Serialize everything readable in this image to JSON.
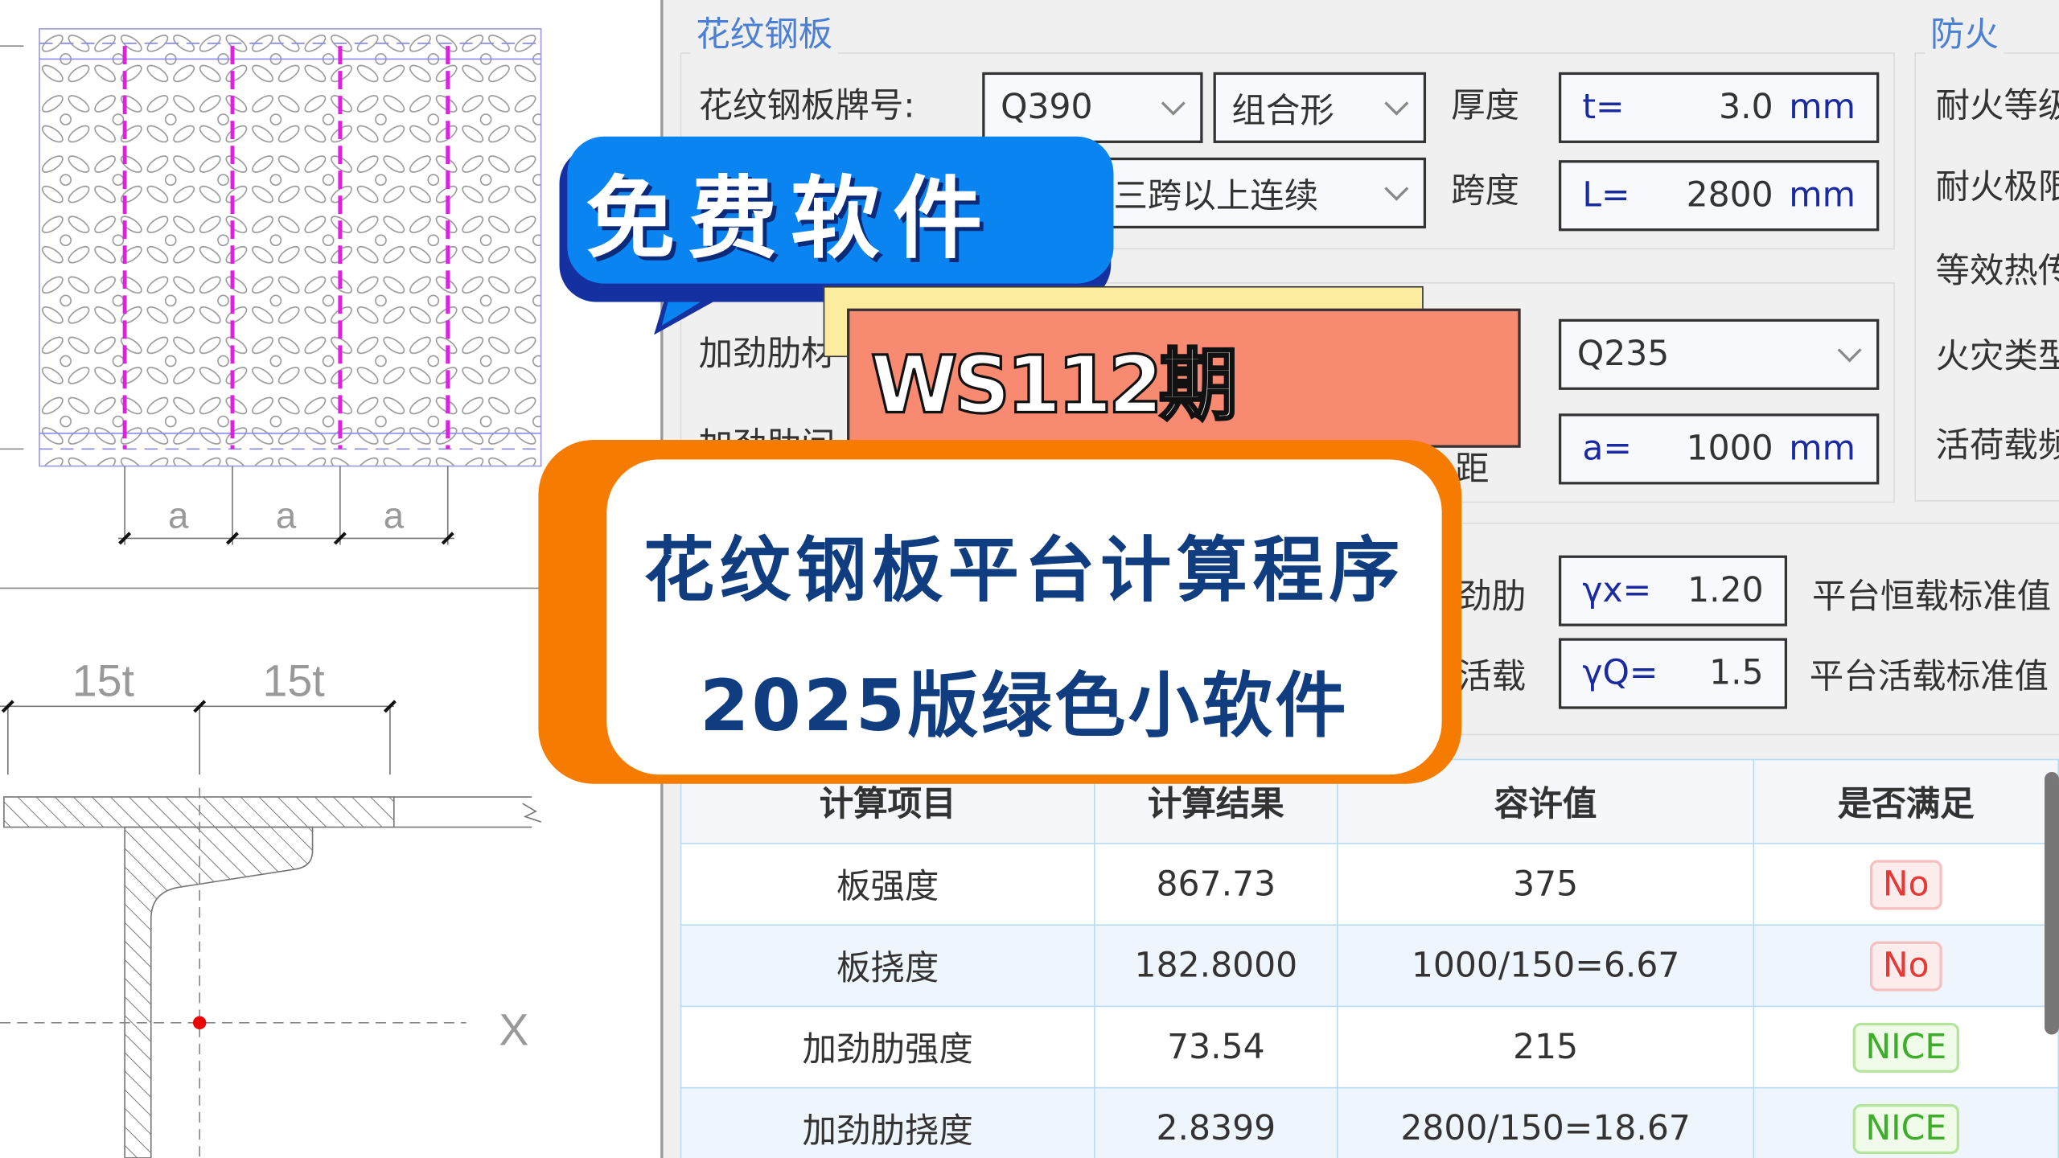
{
  "drawing": {
    "dim_a": "a",
    "dim_15t": "15t",
    "axis_x": "X"
  },
  "plate_group": {
    "title": "花纹钢板",
    "grade_label": "花纹钢板牌号:",
    "grade_value": "Q390",
    "shape_value": "组合形",
    "thickness_label": "厚度",
    "thickness_prefix": "t=",
    "thickness_value": "3.0",
    "thickness_unit": "mm",
    "span_type_value": "三跨以上连续",
    "span_label": "跨度",
    "span_prefix": "L=",
    "span_value": "2800",
    "span_unit": "mm"
  },
  "stiffener_group": {
    "material_label": "加劲肋材",
    "spacing_label_partial": "加劲肋间",
    "spacing_suffix": "距",
    "material_value": "Q235",
    "spacing_prefix": "a=",
    "spacing_value": "1000",
    "spacing_unit": "mm"
  },
  "fire_group": {
    "title": "防火",
    "items": [
      "耐火等级",
      "耐火极限",
      "等效热传",
      "火灾类型",
      "活荷载频"
    ]
  },
  "factors": {
    "gx_label": "劲肋",
    "gx_prefix": "γx=",
    "gx_value": "1.20",
    "dead_load_label": "平台恒载标准值",
    "gq_label": "活载",
    "gq_prefix": "γQ=",
    "gq_value": "1.5",
    "live_load_label": "平台活载标准值"
  },
  "results": {
    "headers": [
      "计算项目",
      "计算结果",
      "容许值",
      "是否满足"
    ],
    "rows": [
      {
        "item": "板强度",
        "result": "867.73",
        "allow": "375",
        "ok": "No"
      },
      {
        "item": "板挠度",
        "result": "182.8000",
        "allow": "1000/150=6.67",
        "ok": "No"
      },
      {
        "item": "加劲肋强度",
        "result": "73.54",
        "allow": "215",
        "ok": "NICE"
      },
      {
        "item": "加劲肋挠度",
        "result": "2.8399",
        "allow": "2800/150=18.67",
        "ok": "NICE"
      }
    ]
  },
  "overlay": {
    "bubble_text": "免费软件",
    "episode": "WS112期",
    "title_line1": "花纹钢板平台计算程序",
    "title_line2": "2025版绿色小软件"
  },
  "colors": {
    "accent_blue": "#0a84f0",
    "orange": "#f57c00",
    "salmon": "#f98a72",
    "navy_text": "#0f3d80",
    "fail": "#e53935",
    "pass": "#3cae2a"
  }
}
